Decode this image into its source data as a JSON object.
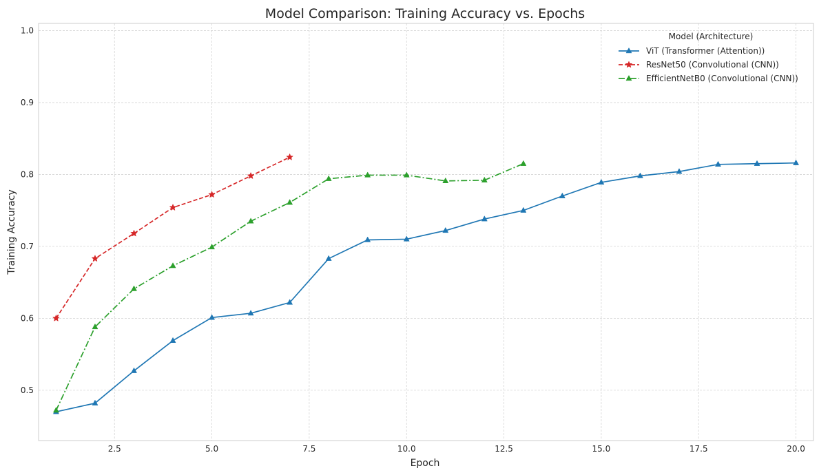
{
  "chart_data": {
    "type": "line",
    "title": "Model Comparison: Training Accuracy vs. Epochs",
    "xlabel": "Epoch",
    "ylabel": "Training Accuracy",
    "xlim": [
      0.55,
      20.45
    ],
    "ylim": [
      0.43,
      1.01
    ],
    "xticks": [
      2.5,
      5.0,
      7.5,
      10.0,
      12.5,
      15.0,
      17.5,
      20.0
    ],
    "xtick_labels": [
      "2.5",
      "5.0",
      "7.5",
      "10.0",
      "12.5",
      "15.0",
      "17.5",
      "20.0"
    ],
    "yticks": [
      0.5,
      0.6,
      0.7,
      0.8,
      0.9,
      1.0
    ],
    "ytick_labels": [
      "0.5",
      "0.6",
      "0.7",
      "0.8",
      "0.9",
      "1.0"
    ],
    "grid": true,
    "legend_title": "Model (Architecture)",
    "legend_position": "top-right",
    "series": [
      {
        "name": "ViT (Transformer (Attention))",
        "color": "#1f77b4",
        "linestyle": "solid",
        "marker": "triangle",
        "x": [
          1,
          2,
          3,
          4,
          5,
          6,
          7,
          8,
          9,
          10,
          11,
          12,
          13,
          14,
          15,
          16,
          17,
          18,
          19,
          20
        ],
        "y": [
          0.47,
          0.482,
          0.527,
          0.569,
          0.601,
          0.607,
          0.622,
          0.683,
          0.709,
          0.71,
          0.722,
          0.738,
          0.75,
          0.77,
          0.789,
          0.798,
          0.804,
          0.814,
          0.815,
          0.816
        ]
      },
      {
        "name": "ResNet50 (Convolutional (CNN))",
        "color": "#d62728",
        "linestyle": "dashed",
        "marker": "star",
        "x": [
          1,
          2,
          3,
          4,
          5,
          6,
          7
        ],
        "y": [
          0.6,
          0.683,
          0.718,
          0.754,
          0.772,
          0.798,
          0.824
        ]
      },
      {
        "name": "EfficientNetB0 (Convolutional (CNN))",
        "color": "#2ca02c",
        "linestyle": "dashdot",
        "marker": "triangle",
        "x": [
          1,
          2,
          3,
          4,
          5,
          6,
          7,
          8,
          9,
          10,
          11,
          12,
          13
        ],
        "y": [
          0.472,
          0.588,
          0.641,
          0.673,
          0.699,
          0.735,
          0.761,
          0.794,
          0.799,
          0.799,
          0.791,
          0.792,
          0.815
        ]
      }
    ]
  }
}
